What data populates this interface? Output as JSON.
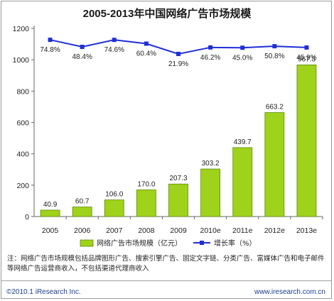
{
  "chart_data": {
    "type": "bar",
    "title": "2005-2013年中国网络广告市场规模",
    "categories": [
      "2005",
      "2006",
      "2007",
      "2008",
      "2009",
      "2010e",
      "2011e",
      "2012e",
      "2013e"
    ],
    "series": [
      {
        "name": "网络广告市场规模（亿元）",
        "type": "bar",
        "values": [
          40.9,
          60.7,
          106.0,
          170.0,
          207.3,
          303.2,
          439.7,
          663.2,
          967.3
        ],
        "value_labels": [
          "40.9",
          "60.7",
          "106.0",
          "170.0",
          "207.3",
          "303.2",
          "439.7",
          "663.2",
          "967.3"
        ]
      },
      {
        "name": "增长率（%）",
        "type": "line",
        "values": [
          74.8,
          48.4,
          74.6,
          60.4,
          21.9,
          46.2,
          45.0,
          50.8,
          45.9
        ],
        "value_labels": [
          "74.8%",
          "48.4%",
          "74.6%",
          "60.4%",
          "21.9%",
          "46.2%",
          "45.0%",
          "50.8%",
          "45.9%"
        ]
      }
    ],
    "ylim": [
      0,
      1200
    ],
    "yticks": [
      "0",
      "200",
      "400",
      "600",
      "800",
      "1000",
      "1200"
    ],
    "grid": false,
    "legend": "bottom-center",
    "colors": {
      "bar_fill": "#9fd21a",
      "bar_edge": "#5d8a0a",
      "line": "#1f2fd6",
      "axis": "#666666"
    }
  },
  "note": "注：网络广告市场规模包括品牌图形广告、搜索引擎广告、固定文字链、分类广告、富媒体广告和电子邮件等网络广告运营商收入，不包括渠道代理商收入",
  "footer": {
    "copyright": "©2010.1 iResearch Inc.",
    "site": "www.iresearch.com.cn"
  }
}
